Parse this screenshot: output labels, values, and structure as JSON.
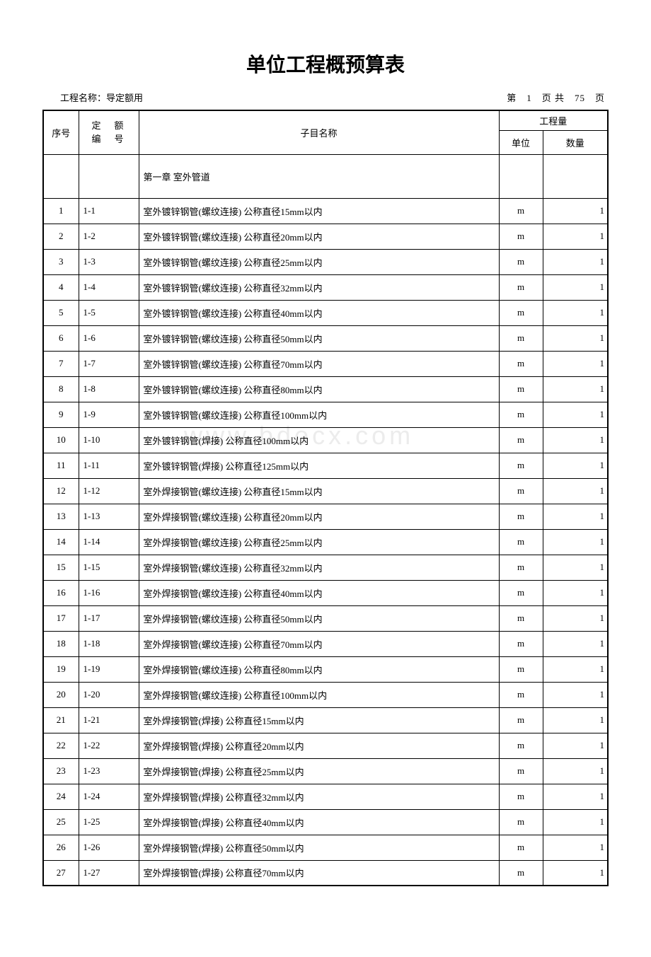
{
  "title": "单位工程概预算表",
  "project_label": "工程名称：",
  "project_name": "导定额用",
  "page_info": "第　1　页 共　75　页",
  "watermark": "www.bdocx.com",
  "table": {
    "headers": {
      "seq": "序号",
      "code_line1": "定　额",
      "code_line2": "编　号",
      "name": "子目名称",
      "qty_group": "工程量",
      "unit": "单位",
      "amount": "数量"
    },
    "section_title": "第一章 室外管道",
    "rows": [
      {
        "seq": "1",
        "code": "1-1",
        "name": "室外镀锌钢管(螺纹连接) 公称直径15mm以内",
        "unit": "m",
        "amount": "1"
      },
      {
        "seq": "2",
        "code": "1-2",
        "name": "室外镀锌钢管(螺纹连接) 公称直径20mm以内",
        "unit": "m",
        "amount": "1"
      },
      {
        "seq": "3",
        "code": "1-3",
        "name": "室外镀锌钢管(螺纹连接) 公称直径25mm以内",
        "unit": "m",
        "amount": "1"
      },
      {
        "seq": "4",
        "code": "1-4",
        "name": "室外镀锌钢管(螺纹连接) 公称直径32mm以内",
        "unit": "m",
        "amount": "1"
      },
      {
        "seq": "5",
        "code": "1-5",
        "name": "室外镀锌钢管(螺纹连接) 公称直径40mm以内",
        "unit": "m",
        "amount": "1"
      },
      {
        "seq": "6",
        "code": "1-6",
        "name": "室外镀锌钢管(螺纹连接) 公称直径50mm以内",
        "unit": "m",
        "amount": "1"
      },
      {
        "seq": "7",
        "code": "1-7",
        "name": "室外镀锌钢管(螺纹连接) 公称直径70mm以内",
        "unit": "m",
        "amount": "1"
      },
      {
        "seq": "8",
        "code": "1-8",
        "name": "室外镀锌钢管(螺纹连接) 公称直径80mm以内",
        "unit": "m",
        "amount": "1"
      },
      {
        "seq": "9",
        "code": "1-9",
        "name": "室外镀锌钢管(螺纹连接) 公称直径100mm以内",
        "unit": "m",
        "amount": "1"
      },
      {
        "seq": "10",
        "code": "1-10",
        "name": "室外镀锌钢管(焊接) 公称直径100mm以内",
        "unit": "m",
        "amount": "1"
      },
      {
        "seq": "11",
        "code": "1-11",
        "name": "室外镀锌钢管(焊接) 公称直径125mm以内",
        "unit": "m",
        "amount": "1"
      },
      {
        "seq": "12",
        "code": "1-12",
        "name": "室外焊接钢管(螺纹连接) 公称直径15mm以内",
        "unit": "m",
        "amount": "1"
      },
      {
        "seq": "13",
        "code": "1-13",
        "name": "室外焊接钢管(螺纹连接) 公称直径20mm以内",
        "unit": "m",
        "amount": "1"
      },
      {
        "seq": "14",
        "code": "1-14",
        "name": "室外焊接钢管(螺纹连接) 公称直径25mm以内",
        "unit": "m",
        "amount": "1"
      },
      {
        "seq": "15",
        "code": "1-15",
        "name": "室外焊接钢管(螺纹连接) 公称直径32mm以内",
        "unit": "m",
        "amount": "1"
      },
      {
        "seq": "16",
        "code": "1-16",
        "name": "室外焊接钢管(螺纹连接) 公称直径40mm以内",
        "unit": "m",
        "amount": "1"
      },
      {
        "seq": "17",
        "code": "1-17",
        "name": "室外焊接钢管(螺纹连接) 公称直径50mm以内",
        "unit": "m",
        "amount": "1"
      },
      {
        "seq": "18",
        "code": "1-18",
        "name": "室外焊接钢管(螺纹连接) 公称直径70mm以内",
        "unit": "m",
        "amount": "1"
      },
      {
        "seq": "19",
        "code": "1-19",
        "name": "室外焊接钢管(螺纹连接) 公称直径80mm以内",
        "unit": "m",
        "amount": "1"
      },
      {
        "seq": "20",
        "code": "1-20",
        "name": "室外焊接钢管(螺纹连接) 公称直径100mm以内",
        "unit": "m",
        "amount": "1"
      },
      {
        "seq": "21",
        "code": "1-21",
        "name": "室外焊接钢管(焊接) 公称直径15mm以内",
        "unit": "m",
        "amount": "1"
      },
      {
        "seq": "22",
        "code": "1-22",
        "name": "室外焊接钢管(焊接) 公称直径20mm以内",
        "unit": "m",
        "amount": "1"
      },
      {
        "seq": "23",
        "code": "1-23",
        "name": "室外焊接钢管(焊接) 公称直径25mm以内",
        "unit": "m",
        "amount": "1"
      },
      {
        "seq": "24",
        "code": "1-24",
        "name": "室外焊接钢管(焊接) 公称直径32mm以内",
        "unit": "m",
        "amount": "1"
      },
      {
        "seq": "25",
        "code": "1-25",
        "name": "室外焊接钢管(焊接) 公称直径40mm以内",
        "unit": "m",
        "amount": "1"
      },
      {
        "seq": "26",
        "code": "1-26",
        "name": "室外焊接钢管(焊接) 公称直径50mm以内",
        "unit": "m",
        "amount": "1"
      },
      {
        "seq": "27",
        "code": "1-27",
        "name": "室外焊接钢管(焊接) 公称直径70mm以内",
        "unit": "m",
        "amount": "1"
      }
    ]
  }
}
